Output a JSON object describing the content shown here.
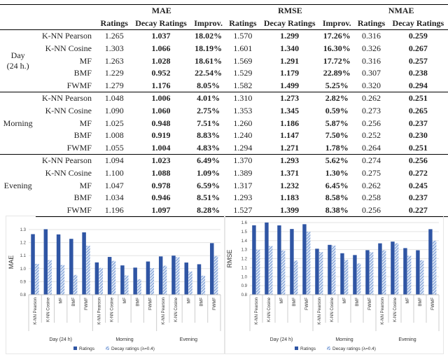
{
  "table": {
    "metrics": [
      "MAE",
      "RMSE",
      "NMAE"
    ],
    "subheaders": [
      "Ratings",
      "Decay Ratings",
      "Improv.",
      "Ratings",
      "Decay Ratings",
      "Improv.",
      "Ratings",
      "Decay Ratings"
    ],
    "groups": [
      {
        "label": "Day\n(24 h.)",
        "rows": [
          [
            "K-NN Pearson",
            "1.265",
            "1.037",
            "18.02%",
            "1.570",
            "1.299",
            "17.26%",
            "0.316",
            "0.259"
          ],
          [
            "K-NN Cosine",
            "1.303",
            "1.066",
            "18.19%",
            "1.601",
            "1.340",
            "16.30%",
            "0.326",
            "0.267"
          ],
          [
            "MF",
            "1.263",
            "1.028",
            "18.61%",
            "1.569",
            "1.291",
            "17.72%",
            "0.316",
            "0.257"
          ],
          [
            "BMF",
            "1.229",
            "0.952",
            "22.54%",
            "1.529",
            "1.179",
            "22.89%",
            "0.307",
            "0.238"
          ],
          [
            "FWMF",
            "1.279",
            "1.176",
            "8.05%",
            "1.582",
            "1.499",
            "5.25%",
            "0.320",
            "0.294"
          ]
        ]
      },
      {
        "label": "Morning",
        "rows": [
          [
            "K-NN Pearson",
            "1.048",
            "1.006",
            "4.01%",
            "1.310",
            "1.273",
            "2.82%",
            "0.262",
            "0.251"
          ],
          [
            "K-NN Cosine",
            "1.090",
            "1.060",
            "2.75%",
            "1.353",
            "1.345",
            "0.59%",
            "0.273",
            "0.265"
          ],
          [
            "MF",
            "1.025",
            "0.948",
            "7.51%",
            "1.260",
            "1.186",
            "5.87%",
            "0.256",
            "0.237"
          ],
          [
            "BMF",
            "1.008",
            "0.919",
            "8.83%",
            "1.240",
            "1.147",
            "7.50%",
            "0.252",
            "0.230"
          ],
          [
            "FWMF",
            "1.055",
            "1.004",
            "4.83%",
            "1.294",
            "1.271",
            "1.78%",
            "0.264",
            "0.251"
          ]
        ]
      },
      {
        "label": "Evening",
        "rows": [
          [
            "K-NN Pearson",
            "1.094",
            "1.023",
            "6.49%",
            "1.370",
            "1.293",
            "5.62%",
            "0.274",
            "0.256"
          ],
          [
            "K-NN Cosine",
            "1.100",
            "1.088",
            "1.09%",
            "1.389",
            "1.371",
            "1.30%",
            "0.275",
            "0.272"
          ],
          [
            "MF",
            "1.047",
            "0.978",
            "6.59%",
            "1.317",
            "1.232",
            "6.45%",
            "0.262",
            "0.245"
          ],
          [
            "BMF",
            "1.034",
            "0.946",
            "8.51%",
            "1.293",
            "1.183",
            "8.58%",
            "0.258",
            "0.237"
          ],
          [
            "FWMF",
            "1.196",
            "1.097",
            "8.28%",
            "1.527",
            "1.399",
            "8.38%",
            "0.256",
            "0.227"
          ]
        ]
      }
    ]
  },
  "chart_data": [
    {
      "type": "bar",
      "ylabel": "MAE",
      "ylim": [
        0.8,
        1.3
      ],
      "yticks": [
        "0.8",
        "0.9",
        "1.0",
        "1.1",
        "1.2",
        "1.3"
      ],
      "grid": true,
      "legend": "bottom",
      "groups": [
        "Day (24 h)",
        "Morning",
        "Evening"
      ],
      "categories": [
        "K-NN Pearson",
        "K-NN Cosine",
        "MF",
        "BMF",
        "FWMF",
        "K-NN Pearson",
        "K-NN Cosine",
        "MF",
        "BMF",
        "FWMF",
        "K-NN Pearson",
        "K-NN Cosine",
        "MF",
        "BMF",
        "FWMF"
      ],
      "series": [
        {
          "name": "Ratings",
          "color": "#2f55a4",
          "values": [
            1.265,
            1.303,
            1.263,
            1.229,
            1.279,
            1.048,
            1.09,
            1.025,
            1.008,
            1.055,
            1.094,
            1.1,
            1.047,
            1.034,
            1.196
          ]
        },
        {
          "name": "Decay ratings (λ=0.4)",
          "color": "#8fb0e0",
          "hatched": true,
          "values": [
            1.037,
            1.066,
            1.028,
            0.952,
            1.176,
            1.006,
            1.06,
            0.948,
            0.919,
            1.004,
            1.023,
            1.088,
            0.978,
            0.946,
            1.097
          ]
        }
      ]
    },
    {
      "type": "bar",
      "ylabel": "RMSE",
      "ylim": [
        0.8,
        1.6
      ],
      "yticks": [
        "0.8",
        "0.9",
        "1.0",
        "1.1",
        "1.2",
        "1.3",
        "1.4",
        "1.5",
        "1.6"
      ],
      "grid": true,
      "legend": "bottom",
      "groups": [
        "Day (24 h)",
        "Morning",
        "Evening"
      ],
      "categories": [
        "K-NN Pearson",
        "K-NN Cosine",
        "MF",
        "BMF",
        "FWMF",
        "K-NN Pearson",
        "K-NN Cosine",
        "MF",
        "BMF",
        "FWMF",
        "K-NN Pearson",
        "K-NN Cosine",
        "MF",
        "BMF",
        "FWMF"
      ],
      "series": [
        {
          "name": "Ratings",
          "color": "#2f55a4",
          "values": [
            1.57,
            1.601,
            1.569,
            1.529,
            1.582,
            1.31,
            1.353,
            1.26,
            1.24,
            1.294,
            1.37,
            1.389,
            1.317,
            1.293,
            1.527
          ]
        },
        {
          "name": "Decay ratings (λ=0.4)",
          "color": "#8fb0e0",
          "hatched": true,
          "values": [
            1.299,
            1.34,
            1.291,
            1.179,
            1.499,
            1.273,
            1.345,
            1.186,
            1.147,
            1.271,
            1.293,
            1.371,
            1.232,
            1.183,
            1.399
          ]
        }
      ]
    }
  ]
}
